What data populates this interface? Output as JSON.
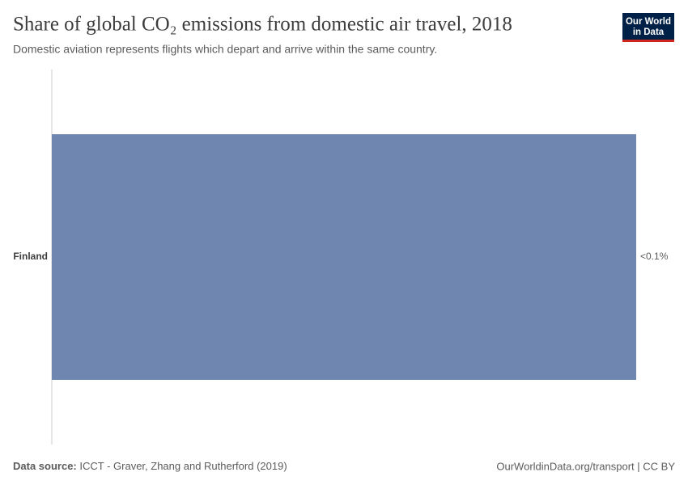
{
  "logo": [
    "Our World",
    "in Data"
  ],
  "chart_data": {
    "type": "bar",
    "orientation": "horizontal",
    "title": "Share of global CO₂ emissions from domestic air travel, 2018",
    "subtitle": "Domestic aviation represents flights which depart and arrive within the same country.",
    "categories": [
      "Finland"
    ],
    "values": [
      0.05
    ],
    "value_labels": [
      "<0.1%"
    ],
    "color": "#6f87b0",
    "source_label": "Data source:",
    "source": "ICCT - Graver, Zhang and Rutherford (2019)",
    "footer_right": "OurWorldinData.org/transport | CC BY"
  }
}
